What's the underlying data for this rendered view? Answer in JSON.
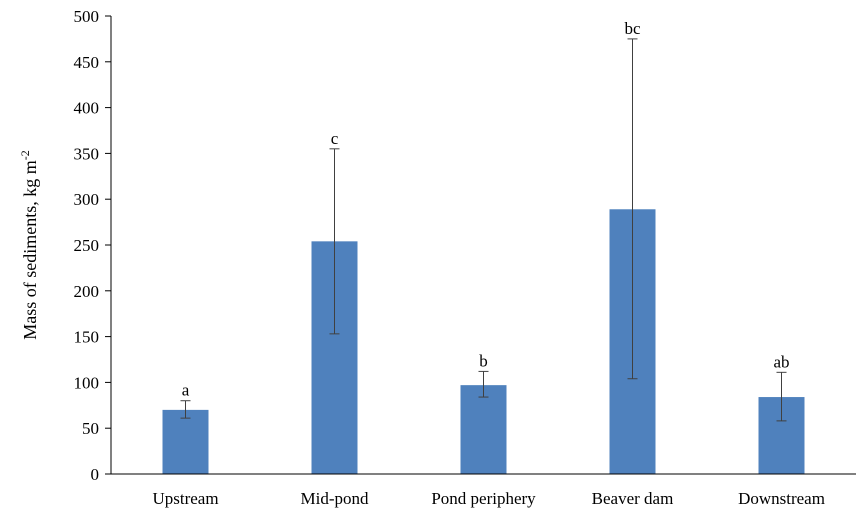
{
  "chart_data": {
    "type": "bar",
    "title": "",
    "xlabel": "",
    "ylabel": {
      "text": "Mass of sediments, kg m",
      "superscript": "-2"
    },
    "ylim": [
      0,
      500
    ],
    "yticks": [
      0,
      50,
      100,
      150,
      200,
      250,
      300,
      350,
      400,
      450,
      500
    ],
    "ytick_labels": [
      "0",
      "50",
      "100",
      "150",
      "200",
      "250",
      "300",
      "350",
      "400",
      "450",
      "500"
    ],
    "grid": false,
    "legend": "none",
    "categories": [
      "Upstream",
      "Mid-pond",
      "Pond periphery",
      "Beaver dam",
      "Downstream"
    ],
    "values": [
      70,
      254,
      97,
      289,
      84
    ],
    "error_low": [
      61,
      153,
      84,
      104,
      58
    ],
    "error_high": [
      80,
      355,
      112,
      475,
      111
    ],
    "significance_labels": [
      "a",
      "c",
      "b",
      "bc",
      "ab"
    ],
    "bar_color": "#4f81bd",
    "error_color": "#404040",
    "axis_color": "#000000"
  }
}
